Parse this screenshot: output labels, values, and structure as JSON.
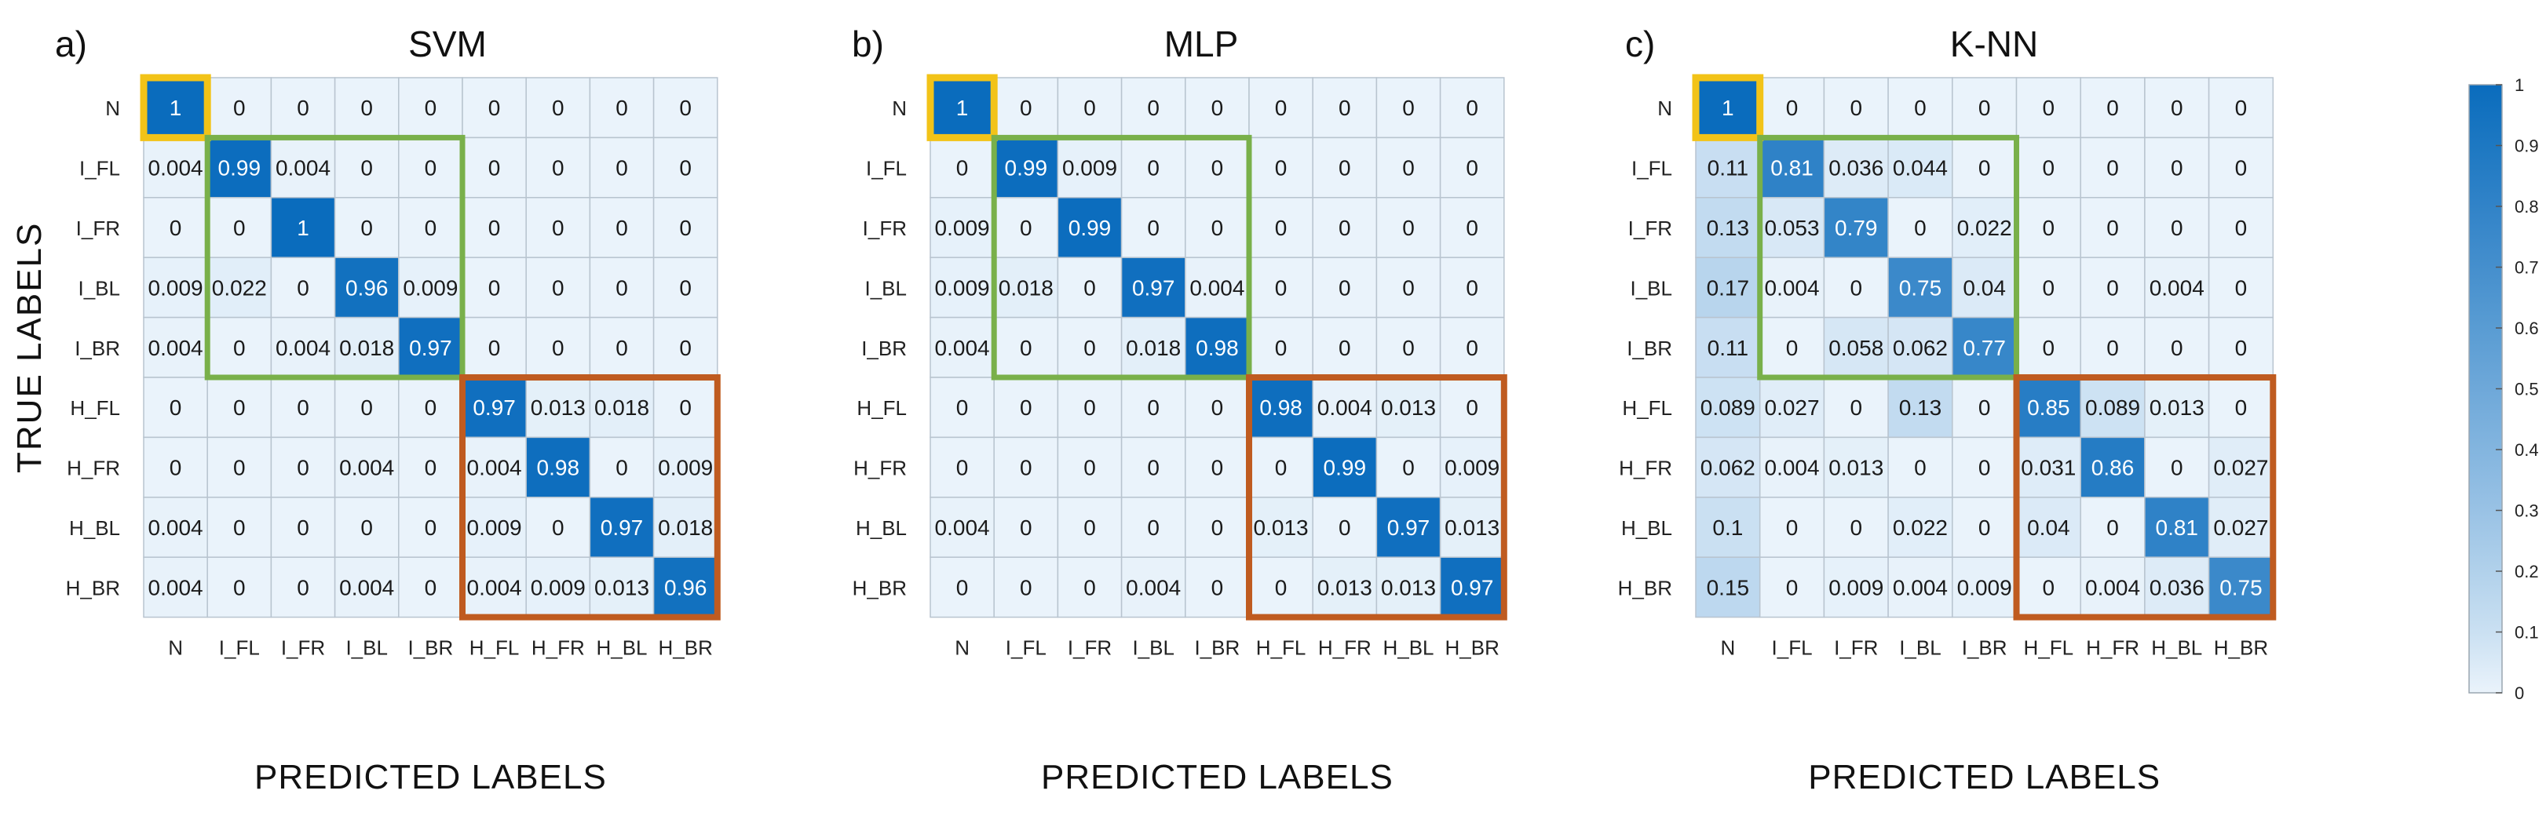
{
  "chart_data": [
    {
      "type": "heatmap",
      "panel_label": "a)",
      "title": "SVM",
      "ylabel": "TRUE LABELS",
      "xlabel": "PREDICTED LABELS",
      "categories": [
        "N",
        "I_FL",
        "I_FR",
        "I_BL",
        "I_BR",
        "H_FL",
        "H_FR",
        "H_BL",
        "H_BR"
      ],
      "matrix": [
        [
          "1",
          "0",
          "0",
          "0",
          "0",
          "0",
          "0",
          "0",
          "0"
        ],
        [
          "0.004",
          "0.99",
          "0.004",
          "0",
          "0",
          "0",
          "0",
          "0",
          "0"
        ],
        [
          "0",
          "0",
          "1",
          "0",
          "0",
          "0",
          "0",
          "0",
          "0"
        ],
        [
          "0.009",
          "0.022",
          "0",
          "0.96",
          "0.009",
          "0",
          "0",
          "0",
          "0"
        ],
        [
          "0.004",
          "0",
          "0.004",
          "0.018",
          "0.97",
          "0",
          "0",
          "0",
          "0"
        ],
        [
          "0",
          "0",
          "0",
          "0",
          "0",
          "0.97",
          "0.013",
          "0.018",
          "0"
        ],
        [
          "0",
          "0",
          "0",
          "0.004",
          "0",
          "0.004",
          "0.98",
          "0",
          "0.009"
        ],
        [
          "0.004",
          "0",
          "0",
          "0",
          "0",
          "0.009",
          "0",
          "0.97",
          "0.018"
        ],
        [
          "0.004",
          "0",
          "0",
          "0.004",
          "0",
          "0.004",
          "0.009",
          "0.013",
          "0.96"
        ]
      ]
    },
    {
      "type": "heatmap",
      "panel_label": "b)",
      "title": "MLP",
      "xlabel": "PREDICTED LABELS",
      "categories": [
        "N",
        "I_FL",
        "I_FR",
        "I_BL",
        "I_BR",
        "H_FL",
        "H_FR",
        "H_BL",
        "H_BR"
      ],
      "matrix": [
        [
          "1",
          "0",
          "0",
          "0",
          "0",
          "0",
          "0",
          "0",
          "0"
        ],
        [
          "0",
          "0.99",
          "0.009",
          "0",
          "0",
          "0",
          "0",
          "0",
          "0"
        ],
        [
          "0.009",
          "0",
          "0.99",
          "0",
          "0",
          "0",
          "0",
          "0",
          "0"
        ],
        [
          "0.009",
          "0.018",
          "0",
          "0.97",
          "0.004",
          "0",
          "0",
          "0",
          "0"
        ],
        [
          "0.004",
          "0",
          "0",
          "0.018",
          "0.98",
          "0",
          "0",
          "0",
          "0"
        ],
        [
          "0",
          "0",
          "0",
          "0",
          "0",
          "0.98",
          "0.004",
          "0.013",
          "0"
        ],
        [
          "0",
          "0",
          "0",
          "0",
          "0",
          "0",
          "0.99",
          "0",
          "0.009"
        ],
        [
          "0.004",
          "0",
          "0",
          "0",
          "0",
          "0.013",
          "0",
          "0.97",
          "0.013"
        ],
        [
          "0",
          "0",
          "0",
          "0.004",
          "0",
          "0",
          "0.013",
          "0.013",
          "0.97"
        ]
      ]
    },
    {
      "type": "heatmap",
      "panel_label": "c)",
      "title": "K-NN",
      "xlabel": "PREDICTED LABELS",
      "categories": [
        "N",
        "I_FL",
        "I_FR",
        "I_BL",
        "I_BR",
        "H_FL",
        "H_FR",
        "H_BL",
        "H_BR"
      ],
      "matrix": [
        [
          "1",
          "0",
          "0",
          "0",
          "0",
          "0",
          "0",
          "0",
          "0"
        ],
        [
          "0.11",
          "0.81",
          "0.036",
          "0.044",
          "0",
          "0",
          "0",
          "0",
          "0"
        ],
        [
          "0.13",
          "0.053",
          "0.79",
          "0",
          "0.022",
          "0",
          "0",
          "0",
          "0"
        ],
        [
          "0.17",
          "0.004",
          "0",
          "0.75",
          "0.04",
          "0",
          "0",
          "0.004",
          "0"
        ],
        [
          "0.11",
          "0",
          "0.058",
          "0.062",
          "0.77",
          "0",
          "0",
          "0",
          "0"
        ],
        [
          "0.089",
          "0.027",
          "0",
          "0.13",
          "0",
          "0.85",
          "0.089",
          "0.013",
          "0"
        ],
        [
          "0.062",
          "0.004",
          "0.013",
          "0",
          "0",
          "0.031",
          "0.86",
          "0",
          "0.027"
        ],
        [
          "0.1",
          "0",
          "0",
          "0.022",
          "0",
          "0.04",
          "0",
          "0.81",
          "0.027"
        ],
        [
          "0.15",
          "0",
          "0.009",
          "0.004",
          "0.009",
          "0",
          "0.004",
          "0.036",
          "0.75"
        ]
      ]
    }
  ],
  "colorbar": {
    "ticks": [
      "0",
      "0.1",
      "0.2",
      "0.3",
      "0.4",
      "0.5",
      "0.6",
      "0.7",
      "0.8",
      "0.9",
      "1"
    ],
    "range": [
      0,
      1
    ]
  },
  "colors": {
    "low": "#eaf3fb",
    "high": "#0a6cbd",
    "grid": "#b8c4cf",
    "box_n": "#f2c318",
    "box_interior": "#79b04a",
    "box_exterior": "#bf5b20"
  }
}
